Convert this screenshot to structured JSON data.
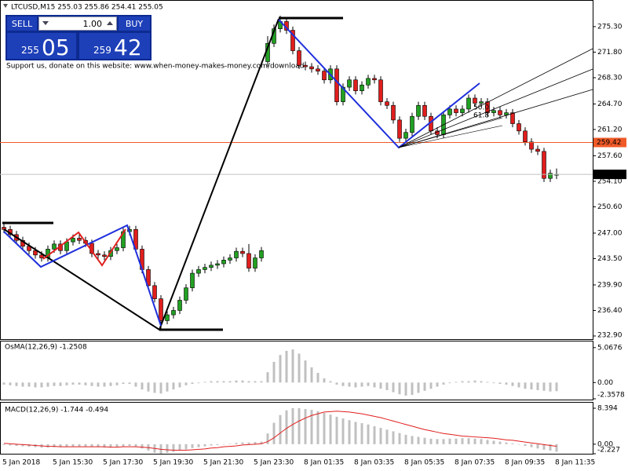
{
  "chart_data": [
    {
      "type": "candlestick",
      "title": "LTCUSD,M15 255.03 255.86 254.41 255.05",
      "annotation": "Support us, donate on this website: www.when-money-makes-money.com/download",
      "fan_labels": [
        "50.0",
        "61.8"
      ],
      "categories": [
        "5 Jan 2018",
        null,
        null,
        null,
        null,
        null,
        null,
        null,
        "5 Jan 15:30",
        null,
        null,
        null,
        null,
        null,
        null,
        null,
        "5 Jan 17:30",
        null,
        null,
        null,
        null,
        null,
        null,
        null,
        "5 Jan 19:30",
        null,
        null,
        null,
        null,
        null,
        null,
        null,
        "5 Jan 21:30",
        null,
        null,
        null,
        null,
        null,
        null,
        null,
        "5 Jan 23:30",
        null,
        null,
        null,
        null,
        null,
        null,
        null,
        "8 Jan 01:35",
        null,
        null,
        null,
        null,
        null,
        null,
        null,
        "8 Jan 03:35",
        null,
        null,
        null,
        null,
        null,
        null,
        null,
        "8 Jan 05:35",
        null,
        null,
        null,
        null,
        null,
        null,
        null,
        "8 Jan 07:35",
        null,
        null,
        null,
        null,
        null,
        null,
        null,
        "8 Jan 09:35",
        null,
        null,
        null,
        null,
        null,
        null,
        null,
        "8 Jan 11:35"
      ],
      "open": [
        247.8,
        247.5,
        246.8,
        246.0,
        245.2,
        244.6,
        244.0,
        243.6,
        244.8,
        245.5,
        244.6,
        245.8,
        246.3,
        246.0,
        245.6,
        244.2,
        244.0,
        243.8,
        244.6,
        245.0,
        247.2,
        247.5,
        244.8,
        242.0,
        239.8,
        238.0,
        235.0,
        235.8,
        236.4,
        237.8,
        239.5,
        241.5,
        242.0,
        242.3,
        242.6,
        242.8,
        243.3,
        243.6,
        244.5,
        244.2,
        242.2,
        243.6,
        270.5,
        273.0,
        275.0,
        276.0,
        274.8,
        272.0,
        270.0,
        269.8,
        269.5,
        269.2,
        268.0,
        269.5,
        265.0,
        267.0,
        268.0,
        266.5,
        267.3,
        268.2,
        268.0,
        265.0,
        264.5,
        262.5,
        260.0,
        260.8,
        263.0,
        264.5,
        263.0,
        261.0,
        260.5,
        263.2,
        264.0,
        263.5,
        264.0,
        265.5,
        264.8,
        265.0,
        263.5,
        263.8,
        263.2,
        263.5,
        262.0,
        261.0,
        259.5,
        258.5,
        258.2,
        254.5,
        255.03
      ],
      "high": [
        248.3,
        248.0,
        247.3,
        246.5,
        245.7,
        245.1,
        244.5,
        245.3,
        246.0,
        246.0,
        246.3,
        246.8,
        246.8,
        246.5,
        246.1,
        244.7,
        244.5,
        245.1,
        245.5,
        247.7,
        248.0,
        248.0,
        245.3,
        242.5,
        240.3,
        238.5,
        236.3,
        236.9,
        238.3,
        240.0,
        242.0,
        242.5,
        242.8,
        243.1,
        243.3,
        243.8,
        244.1,
        245.0,
        245.0,
        245.5,
        244.1,
        245.1,
        274.0,
        275.6,
        276.8,
        276.5,
        275.3,
        272.5,
        270.5,
        270.3,
        270.0,
        269.7,
        270.0,
        270.0,
        267.5,
        268.5,
        268.5,
        267.8,
        268.7,
        268.7,
        268.5,
        265.5,
        265.0,
        263.0,
        261.3,
        263.5,
        265.0,
        265.0,
        263.5,
        261.5,
        263.7,
        264.5,
        264.5,
        264.5,
        266.0,
        266.0,
        265.5,
        265.5,
        264.3,
        264.3,
        264.0,
        264.0,
        262.5,
        261.5,
        260.0,
        259.0,
        258.7,
        255.7,
        255.86
      ],
      "low": [
        247.0,
        246.3,
        245.5,
        244.7,
        244.1,
        243.5,
        243.1,
        243.1,
        244.3,
        244.1,
        244.1,
        245.3,
        245.5,
        245.1,
        243.7,
        243.5,
        243.3,
        243.3,
        244.1,
        244.5,
        246.7,
        244.3,
        241.5,
        239.3,
        237.5,
        233.6,
        234.5,
        235.3,
        235.9,
        237.3,
        239.0,
        241.0,
        241.5,
        241.8,
        242.1,
        242.3,
        242.8,
        243.1,
        243.7,
        241.7,
        241.7,
        243.1,
        269.8,
        272.5,
        274.5,
        274.3,
        271.5,
        269.5,
        269.3,
        269.0,
        268.7,
        267.5,
        267.5,
        264.5,
        264.5,
        266.5,
        266.0,
        266.0,
        266.8,
        267.5,
        264.5,
        264.0,
        262.0,
        259.5,
        259.5,
        260.3,
        262.5,
        262.5,
        260.5,
        260.0,
        260.0,
        262.7,
        263.0,
        263.0,
        263.5,
        264.3,
        264.3,
        263.0,
        263.0,
        262.7,
        262.7,
        261.5,
        260.5,
        259.0,
        258.0,
        257.7,
        254.0,
        254.0,
        254.41
      ],
      "close": [
        247.5,
        246.8,
        246.0,
        245.2,
        244.6,
        244.0,
        243.6,
        244.8,
        245.5,
        244.6,
        245.8,
        246.3,
        246.0,
        245.6,
        244.2,
        244.0,
        243.8,
        244.6,
        245.0,
        247.2,
        247.5,
        244.8,
        242.0,
        239.8,
        238.0,
        235.0,
        235.8,
        236.4,
        237.8,
        239.5,
        241.5,
        242.0,
        242.3,
        242.6,
        242.8,
        243.3,
        243.6,
        244.5,
        244.2,
        242.2,
        243.6,
        244.6,
        273.0,
        275.0,
        276.0,
        274.8,
        272.0,
        270.0,
        269.8,
        269.5,
        269.2,
        268.0,
        269.5,
        265.0,
        267.0,
        268.0,
        266.5,
        267.3,
        268.2,
        268.0,
        265.0,
        264.5,
        262.5,
        260.0,
        260.8,
        263.0,
        264.5,
        263.0,
        261.0,
        260.5,
        263.2,
        264.0,
        263.5,
        264.0,
        265.5,
        264.8,
        265.0,
        263.5,
        263.8,
        263.2,
        263.5,
        262.0,
        261.0,
        259.5,
        258.5,
        258.2,
        254.5,
        255.2,
        255.05
      ],
      "up_color": "#22a022",
      "down_color": "#e01e1e",
      "ylim": [
        232.47,
        278.84
      ],
      "yticks": [
        {
          "value": 275.3,
          "label": "275.30"
        },
        {
          "value": 271.8,
          "label": "271.80"
        },
        {
          "value": 268.3,
          "label": "268.30"
        },
        {
          "value": 264.7,
          "label": "264.70"
        },
        {
          "value": 261.2,
          "label": "261.20"
        },
        {
          "value": 257.6,
          "label": "257.60"
        },
        {
          "value": 254.1,
          "label": "254.10"
        },
        {
          "value": 250.6,
          "label": "250.60"
        },
        {
          "value": 247,
          "label": "247.00"
        },
        {
          "value": 243.5,
          "label": "243.50"
        },
        {
          "value": 239.9,
          "label": "239.90"
        },
        {
          "value": 236.4,
          "label": "236.40"
        },
        {
          "value": 232.9,
          "label": "232.90"
        }
      ],
      "price_lines": [
        {
          "value": 259.42,
          "color": "#f05a28",
          "label_color": "#f05a28"
        },
        {
          "value": 255.05,
          "color": "#c0c0c0",
          "label_color": "#000000"
        }
      ],
      "grid": false
    },
    {
      "type": "bar",
      "title": "OsMA(12,26,9) -1.2508",
      "values": [
        -0.3,
        -0.4,
        -0.5,
        -0.6,
        -0.6,
        -0.7,
        -0.7,
        -0.6,
        -0.5,
        -0.5,
        -0.4,
        -0.3,
        -0.3,
        -0.4,
        -0.5,
        -0.6,
        -0.6,
        -0.5,
        -0.4,
        -0.2,
        -0.2,
        -0.6,
        -1.0,
        -1.3,
        -1.5,
        -1.6,
        -1.3,
        -1.0,
        -0.7,
        -0.4,
        -0.2,
        -0.1,
        0.1,
        0.2,
        0.2,
        0.2,
        0.2,
        0.3,
        0.3,
        0.2,
        0.2,
        0.2,
        1.5,
        3.0,
        4.0,
        4.6,
        4.8,
        4.2,
        3.2,
        2.2,
        1.4,
        0.6,
        0.2,
        -0.3,
        -0.5,
        -0.6,
        -0.7,
        -0.6,
        -0.5,
        -0.7,
        -0.9,
        -1.1,
        -1.4,
        -1.7,
        -1.9,
        -1.8,
        -1.5,
        -1.2,
        -0.9,
        -0.6,
        -0.3,
        -0.1,
        0.1,
        0.2,
        0.2,
        0.3,
        0.2,
        0.1,
        -0.1,
        -0.2,
        -0.3,
        -0.5,
        -0.7,
        -0.9,
        -1.0,
        -1.1,
        -1.2,
        -1.3,
        -1.2508
      ],
      "color": "#c0c0c0",
      "ylim": [
        -2.3578,
        5.96
      ],
      "yticks": [
        5.0676,
        {
          "value": 0,
          "label": "0.00"
        },
        -2.3578
      ]
    },
    {
      "type": "macd",
      "title": "MACD(12,26,9) -1.744 -0.494",
      "values": [
        -0.2,
        -0.3,
        -0.4,
        -0.5,
        -0.6,
        -0.7,
        -0.8,
        -0.8,
        -0.7,
        -0.7,
        -0.6,
        -0.5,
        -0.5,
        -0.5,
        -0.6,
        -0.7,
        -0.8,
        -0.8,
        -0.7,
        -0.5,
        -0.4,
        -0.6,
        -1.0,
        -1.5,
        -2.0,
        -2.2,
        -2.0,
        -1.8,
        -1.5,
        -1.2,
        -0.9,
        -0.7,
        -0.5,
        -0.3,
        -0.2,
        0.0,
        0.1,
        0.3,
        0.4,
        0.4,
        0.5,
        0.6,
        2.5,
        5.0,
        6.8,
        7.9,
        8.4,
        8.4,
        8.2,
        8.0,
        7.7,
        7.3,
        6.9,
        6.4,
        6.0,
        5.6,
        5.2,
        4.9,
        4.6,
        4.2,
        3.8,
        3.4,
        3.0,
        2.6,
        2.2,
        1.9,
        1.7,
        1.5,
        1.3,
        1.2,
        1.2,
        1.3,
        1.3,
        1.4,
        1.4,
        1.3,
        1.2,
        1.0,
        0.8,
        0.6,
        0.4,
        0.2,
        -0.1,
        -0.4,
        -0.7,
        -1.0,
        -1.3,
        -1.5,
        -1.744
      ],
      "signal": [
        0.2,
        0.1,
        0.0,
        -0.1,
        -0.2,
        -0.3,
        -0.4,
        -0.5,
        -0.5,
        -0.6,
        -0.6,
        -0.6,
        -0.6,
        -0.6,
        -0.6,
        -0.6,
        -0.6,
        -0.7,
        -0.7,
        -0.6,
        -0.6,
        -0.6,
        -0.7,
        -0.8,
        -1.0,
        -1.2,
        -1.3,
        -1.4,
        -1.4,
        -1.4,
        -1.3,
        -1.2,
        -1.1,
        -0.9,
        -0.8,
        -0.6,
        -0.5,
        -0.4,
        -0.2,
        -0.1,
        0.0,
        0.1,
        0.6,
        1.5,
        2.6,
        3.7,
        4.6,
        5.4,
        6.1,
        6.7,
        7.1,
        7.5,
        7.6,
        7.7,
        7.6,
        7.5,
        7.3,
        7.1,
        6.8,
        6.5,
        6.2,
        5.8,
        5.4,
        5.0,
        4.6,
        4.2,
        3.8,
        3.4,
        3.1,
        2.8,
        2.5,
        2.3,
        2.1,
        1.9,
        1.8,
        1.7,
        1.6,
        1.5,
        1.4,
        1.2,
        1.0,
        0.9,
        0.7,
        0.5,
        0.3,
        0.1,
        -0.1,
        -0.3,
        -0.494
      ],
      "color": "#c0c0c0",
      "signal_color": "#e01e1e",
      "ylim": [
        -2.227,
        9.68
      ],
      "yticks": [
        8.394,
        {
          "value": 0,
          "label": "0.00"
        },
        -2.227
      ]
    }
  ],
  "trade_panel": {
    "sell_label": "SELL",
    "buy_label": "BUY",
    "volume": "1.00",
    "sell_price_small": "255",
    "sell_price_big": "05",
    "buy_price_small": "259",
    "buy_price_big": "42"
  }
}
